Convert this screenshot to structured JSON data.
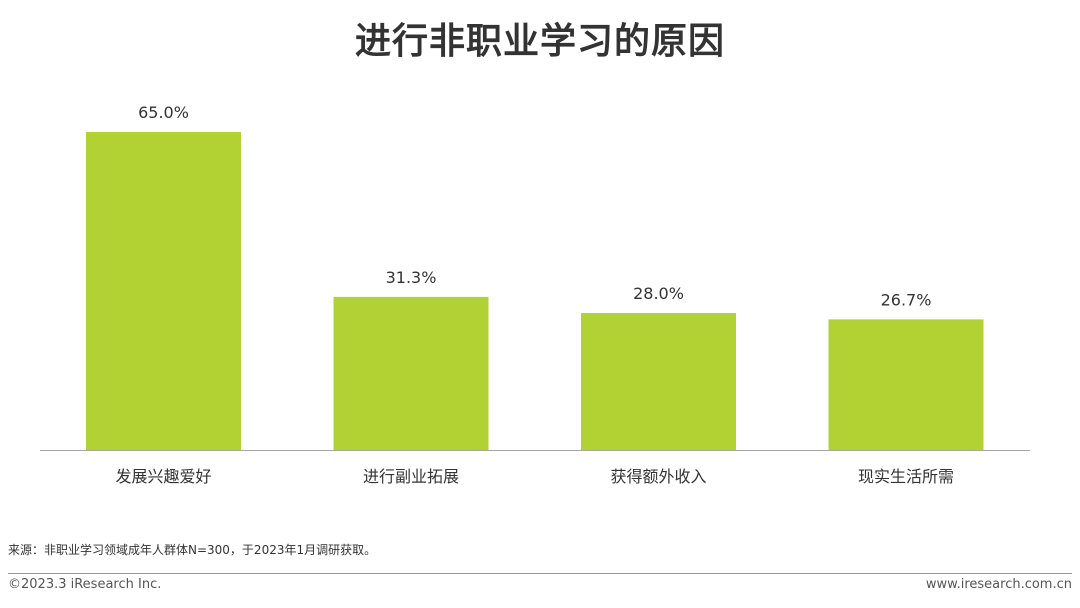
{
  "title": "进行非职业学习的原因",
  "colors": {
    "bar": "#b2d233",
    "axis": "#a6a6a6",
    "text": "#333333"
  },
  "chart_data": {
    "type": "bar",
    "categories": [
      "发展兴趣爱好",
      "进行副业拓展",
      "获得额外收入",
      "现实生活所需"
    ],
    "values": [
      65.0,
      31.3,
      28.0,
      26.7
    ],
    "value_labels": [
      "65.0%",
      "31.3%",
      "28.0%",
      "26.7%"
    ],
    "ylim": [
      0,
      70
    ],
    "grid": false,
    "legend": "none"
  },
  "footer": {
    "source": "来源：非职业学习领域成年人群体N=300，于2023年1月调研获取。",
    "copyright": "©2023.3 iResearch Inc.",
    "website": "www.iresearch.com.cn"
  }
}
